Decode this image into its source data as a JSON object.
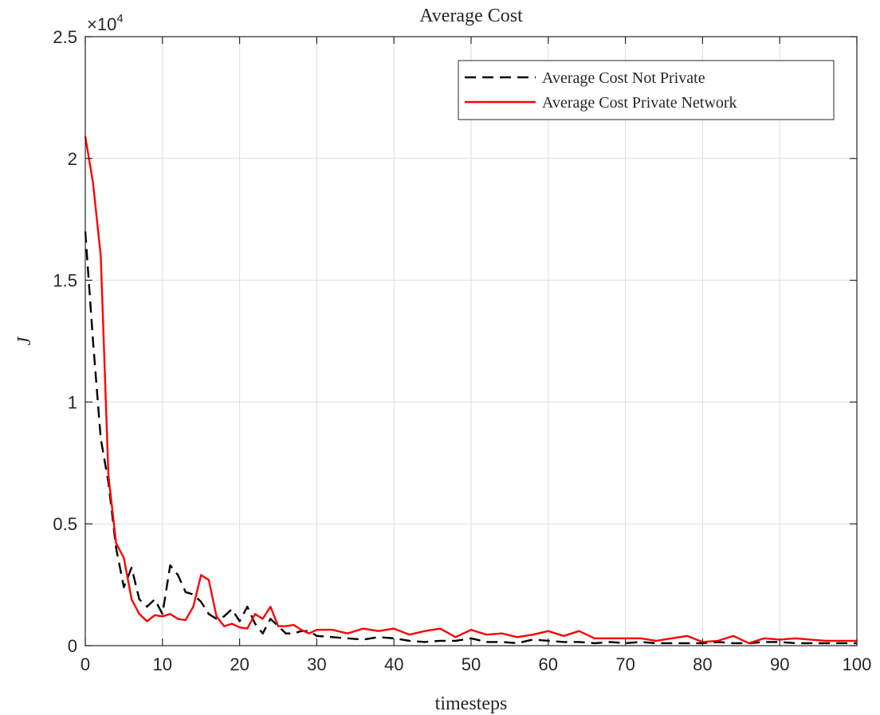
{
  "chart_data": {
    "type": "line",
    "title": "Average Cost",
    "xlabel": "timesteps",
    "ylabel": "J",
    "y_exponent_label": "×10",
    "y_exponent_power": "4",
    "xlim": [
      0,
      100
    ],
    "ylim": [
      0,
      25000
    ],
    "x_ticks": [
      0,
      10,
      20,
      30,
      40,
      50,
      60,
      70,
      80,
      90,
      100
    ],
    "x_tick_labels": [
      "0",
      "10",
      "20",
      "30",
      "40",
      "50",
      "60",
      "70",
      "80",
      "90",
      "100"
    ],
    "y_ticks": [
      0,
      5000,
      10000,
      15000,
      20000,
      25000
    ],
    "y_tick_labels": [
      "0",
      "0.5",
      "1",
      "1.5",
      "2",
      "2.5"
    ],
    "grid": true,
    "legend_position": "top-right",
    "series": [
      {
        "name": "Average Cost Not Private",
        "color": "#000000",
        "style": "dashed",
        "x": [
          0,
          1,
          2,
          3,
          4,
          5,
          6,
          7,
          8,
          9,
          10,
          11,
          12,
          13,
          14,
          15,
          16,
          17,
          18,
          19,
          20,
          21,
          22,
          23,
          24,
          25,
          26,
          27,
          28,
          29,
          30,
          32,
          34,
          36,
          38,
          40,
          42,
          44,
          46,
          48,
          50,
          52,
          54,
          56,
          58,
          60,
          62,
          64,
          66,
          68,
          70,
          72,
          74,
          76,
          78,
          80,
          82,
          84,
          86,
          88,
          90,
          92,
          94,
          96,
          98,
          100
        ],
        "y": [
          17000,
          12500,
          8500,
          6700,
          4000,
          2400,
          3200,
          1900,
          1600,
          1900,
          1300,
          3300,
          2900,
          2200,
          2100,
          1800,
          1300,
          1100,
          1200,
          1500,
          1000,
          1600,
          900,
          500,
          1100,
          800,
          500,
          500,
          600,
          600,
          400,
          350,
          300,
          250,
          350,
          300,
          200,
          150,
          200,
          200,
          300,
          150,
          150,
          100,
          250,
          200,
          150,
          150,
          100,
          150,
          100,
          150,
          100,
          100,
          100,
          100,
          150,
          100,
          100,
          150,
          150,
          100,
          100,
          100,
          100,
          100
        ]
      },
      {
        "name": "Average Cost Private Network",
        "color": "#ff0000",
        "style": "solid",
        "x": [
          0,
          1,
          2,
          3,
          4,
          5,
          6,
          7,
          8,
          9,
          10,
          11,
          12,
          13,
          14,
          15,
          16,
          17,
          18,
          19,
          20,
          21,
          22,
          23,
          24,
          25,
          26,
          27,
          28,
          29,
          30,
          32,
          34,
          36,
          38,
          40,
          42,
          44,
          46,
          48,
          50,
          52,
          54,
          56,
          58,
          60,
          62,
          64,
          66,
          68,
          70,
          72,
          74,
          76,
          78,
          80,
          82,
          84,
          86,
          88,
          90,
          92,
          94,
          96,
          98,
          100
        ],
        "y": [
          20900,
          19000,
          16000,
          7000,
          4200,
          3600,
          1900,
          1300,
          1000,
          1250,
          1200,
          1300,
          1100,
          1050,
          1600,
          2900,
          2700,
          1200,
          800,
          900,
          750,
          700,
          1300,
          1100,
          1600,
          800,
          800,
          850,
          650,
          500,
          650,
          650,
          500,
          700,
          600,
          700,
          450,
          600,
          700,
          350,
          650,
          450,
          500,
          350,
          450,
          600,
          400,
          600,
          300,
          300,
          300,
          300,
          200,
          300,
          400,
          150,
          200,
          400,
          100,
          300,
          250,
          300,
          250,
          200,
          200,
          200
        ]
      }
    ]
  }
}
